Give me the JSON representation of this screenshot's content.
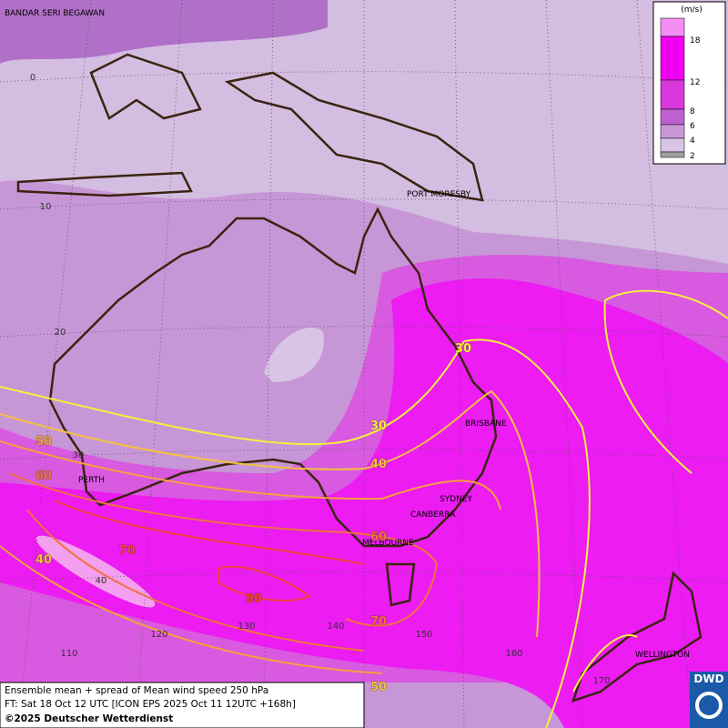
{
  "map": {
    "cities": [
      "BANDAR SERI BEGAWAN",
      "PORT MORESBY",
      "BRISBANE",
      "SYDNEY",
      "CANBERRA",
      "MELBOURNE",
      "PERTH",
      "WELLINGTON"
    ],
    "lat_labels": [
      0,
      10,
      20,
      30,
      40
    ],
    "lon_labels": [
      110,
      120,
      130,
      140,
      150,
      160,
      170
    ],
    "contour_labels": [
      30,
      30,
      40,
      50,
      60,
      70,
      80,
      70,
      60,
      40,
      50
    ]
  },
  "legend": {
    "unit": "(m/s)",
    "levels": [
      18,
      12,
      8,
      6,
      4,
      2
    ]
  },
  "caption": {
    "line1": "Ensemble mean + spread of Mean wind speed 250 hPa",
    "line2": "FT: Sat 18 Oct 12 UTC [ICON EPS 2025 Oct 11 12UTC +168h]",
    "line3": "©2025 Deutscher Wetterdienst"
  },
  "logo": "DWD"
}
